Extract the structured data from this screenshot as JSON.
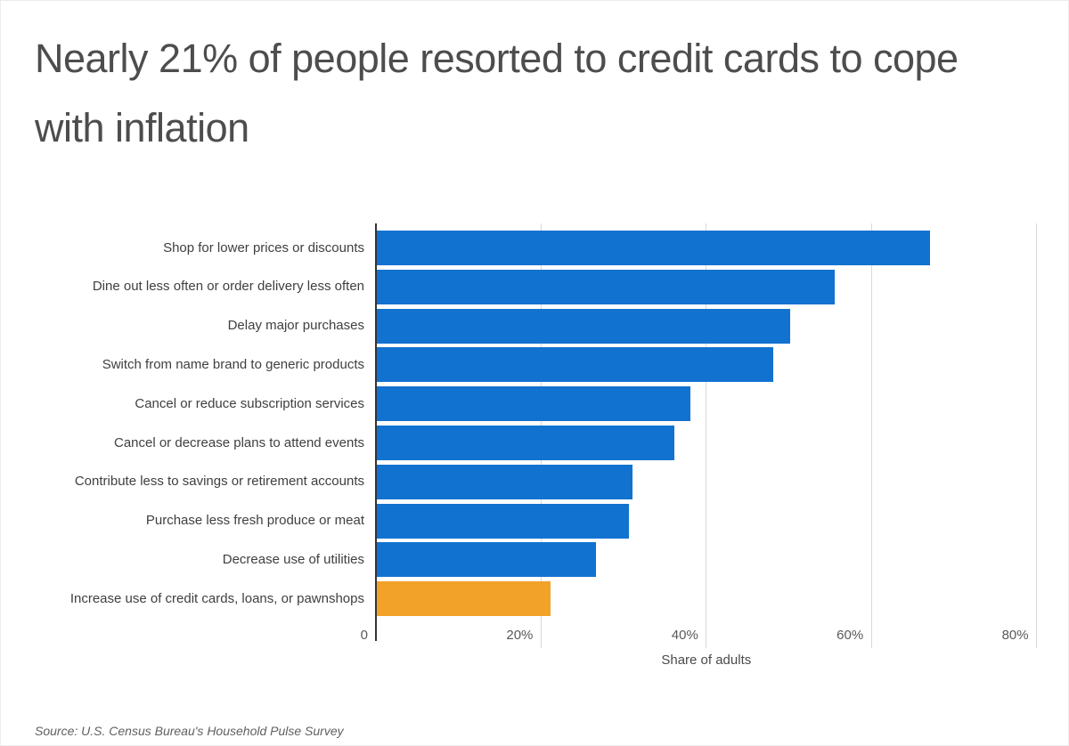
{
  "title": "Nearly 21% of people resorted to credit cards to cope with inflation",
  "source": "Source: U.S. Census Bureau's Household Pulse Survey",
  "chart_data": {
    "type": "bar",
    "orientation": "horizontal",
    "title": "Nearly 21% of people resorted to credit cards to cope with inflation",
    "xlabel": "Share of adults",
    "ylabel": "",
    "categories": [
      "Shop for lower prices or discounts",
      "Dine out less often or order delivery less often",
      "Delay major purchases",
      "Switch from name brand to generic products",
      "Cancel or reduce subscription services",
      "Cancel or decrease plans to attend events",
      "Contribute less to savings or retirement accounts",
      "Purchase less fresh produce or meat",
      "Decrease use of utilities",
      "Increase use of credit cards, loans, or pawnshops"
    ],
    "values": [
      67,
      55.5,
      50,
      48,
      38,
      36,
      31,
      30.5,
      26.5,
      21
    ],
    "unit": "%",
    "x_ticks": [
      "0",
      "20%",
      "40%",
      "60%",
      "80%"
    ],
    "x_tick_values": [
      0,
      20,
      40,
      60,
      80
    ],
    "xlim": [
      0,
      82
    ],
    "grid": "vertical",
    "legend": "none",
    "highlight_index": 9,
    "colors": {
      "bar": "#1272d0",
      "highlight": "#f2a129",
      "gridline": "#d9d9d9",
      "axis": "#333333",
      "title_text": "#4d4d4d",
      "label_text": "#3f3f3f"
    }
  }
}
